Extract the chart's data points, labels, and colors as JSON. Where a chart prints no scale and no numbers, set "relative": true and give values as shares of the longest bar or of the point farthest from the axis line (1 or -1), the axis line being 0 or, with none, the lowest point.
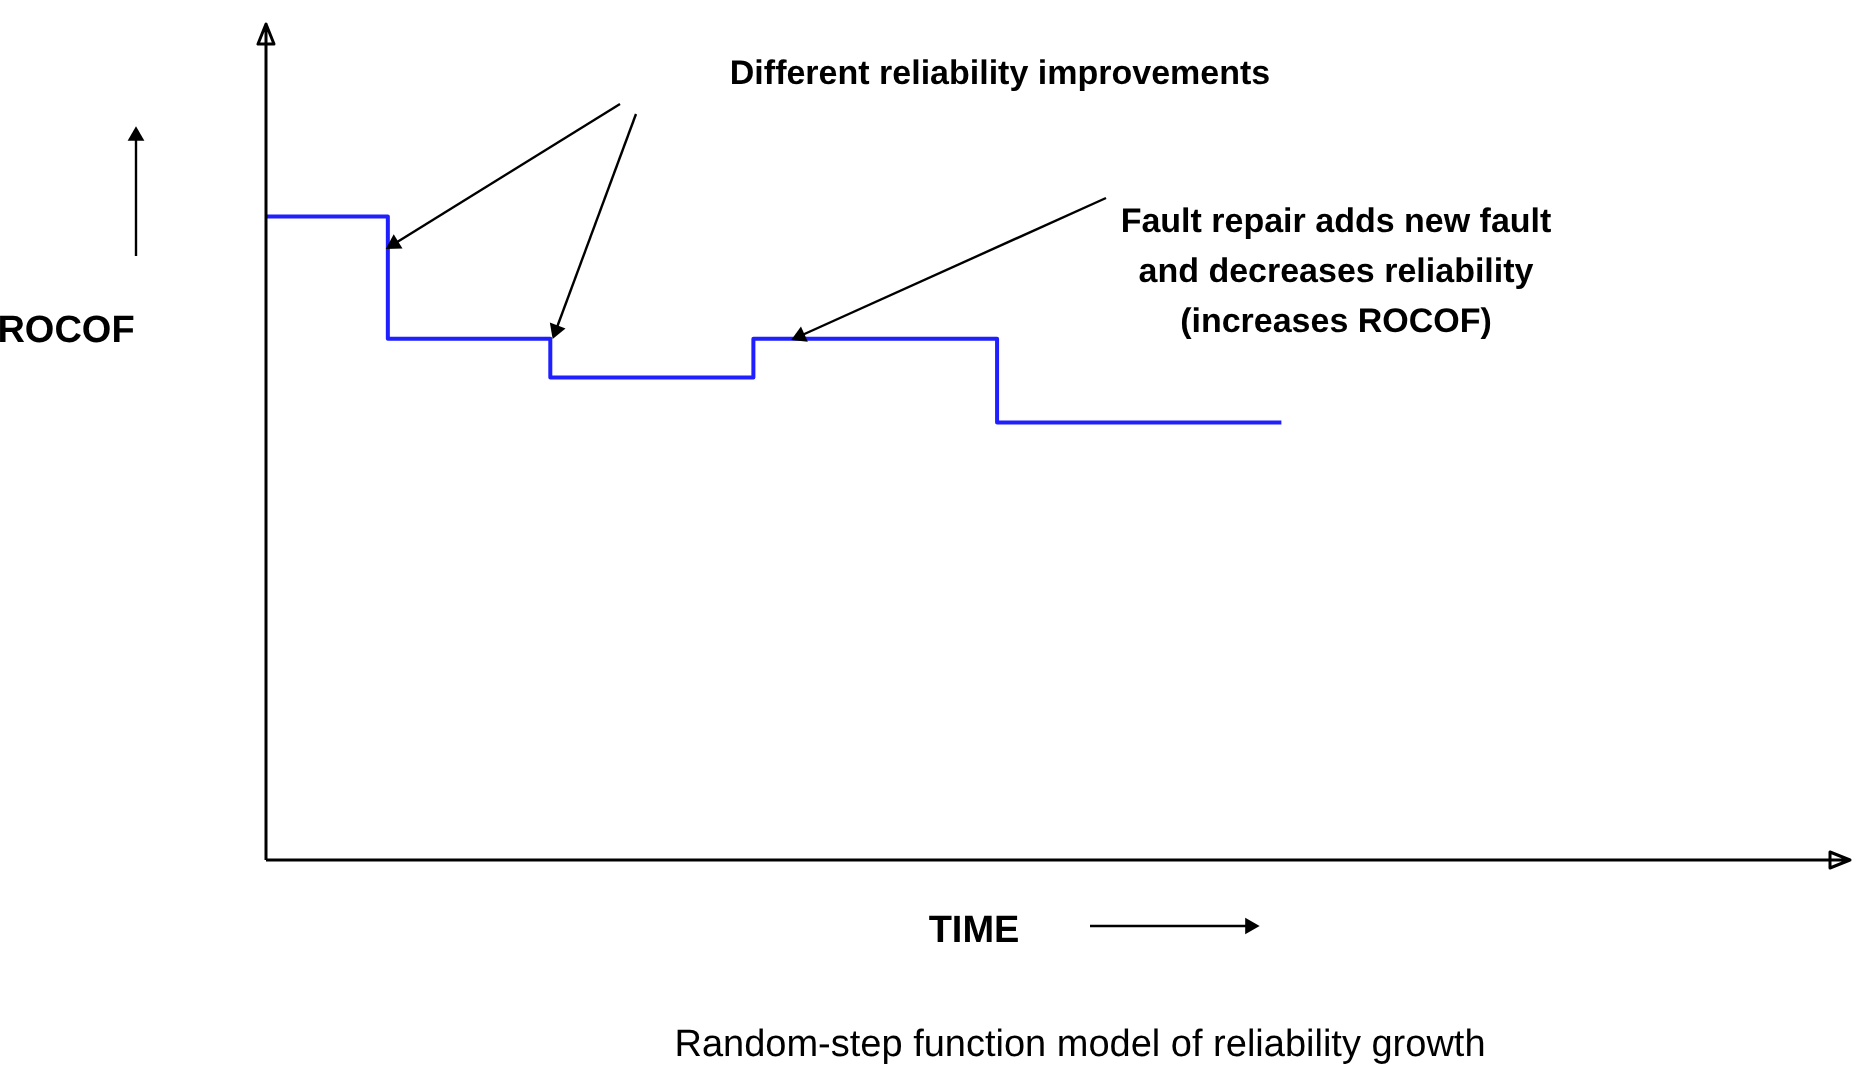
{
  "chart_data": {
    "type": "step",
    "relative": true,
    "color": "#1f1fff",
    "title": "Random-step function model of reliability growth",
    "xlabel": "TIME",
    "ylabel": "ROCOF",
    "categories": [
      null,
      null,
      null,
      null,
      null,
      null,
      null,
      null,
      null,
      null,
      null,
      null,
      null,
      null,
      null,
      null,
      null,
      null,
      null,
      null,
      null,
      null,
      null,
      null,
      null,
      null,
      null,
      null,
      null,
      null,
      null,
      null,
      null,
      null,
      null,
      null,
      null,
      null,
      null,
      null
    ],
    "values": [
      1,
      1,
      1,
      0.81,
      0.81,
      0.81,
      0.81,
      0.75,
      0.75,
      0.75,
      0.75,
      0.75,
      0.81,
      0.81,
      0.81,
      0.81,
      0.81,
      0.81,
      0.68,
      0.68,
      0.68,
      0.68,
      0.68,
      0.68,
      0.68,
      0.68,
      null,
      null,
      null,
      null,
      null,
      null,
      null,
      null,
      null,
      null,
      null,
      null,
      null,
      null
    ],
    "annotations": [
      "Different reliability improvements",
      "Fault repair adds new fault\nand decreases reliability\n(increases ROCOF)"
    ]
  }
}
